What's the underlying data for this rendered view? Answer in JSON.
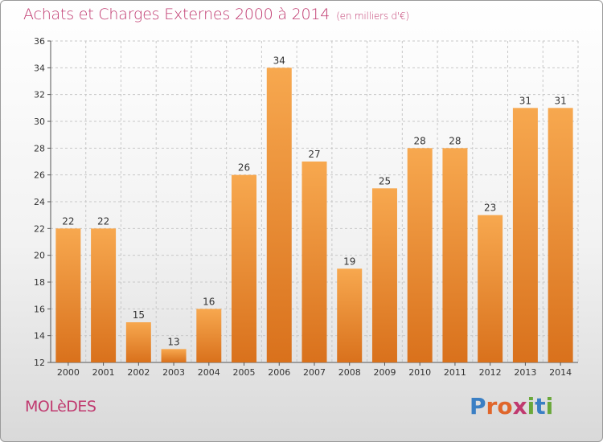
{
  "header": {
    "title": "Achats et Charges Externes 2000 à 2014",
    "subtitle": "(en milliers d'€)"
  },
  "footer": {
    "commune": "MOLèDES",
    "logo_letters": [
      "P",
      "r",
      "o",
      "x",
      "i",
      "t",
      "i"
    ]
  },
  "colors": {
    "bar_light": "#f7a84f",
    "bar_dark": "#d9711c",
    "grid": "#c8c8c8",
    "title": "#c0396f"
  },
  "chart_data": {
    "type": "bar",
    "title": "Achats et Charges Externes 2000 à 2014",
    "subtitle": "(en milliers d'€)",
    "xlabel": "",
    "ylabel": "",
    "categories": [
      "2000",
      "2001",
      "2002",
      "2003",
      "2004",
      "2005",
      "2006",
      "2007",
      "2008",
      "2009",
      "2010",
      "2011",
      "2012",
      "2013",
      "2014"
    ],
    "values": [
      22,
      22,
      15,
      13,
      16,
      26,
      34,
      27,
      19,
      25,
      28,
      28,
      23,
      31,
      31
    ],
    "ylim": [
      12,
      36
    ],
    "yticks": [
      12,
      14,
      16,
      18,
      20,
      22,
      24,
      26,
      28,
      30,
      32,
      34,
      36
    ],
    "grid": true,
    "legend": "none"
  }
}
